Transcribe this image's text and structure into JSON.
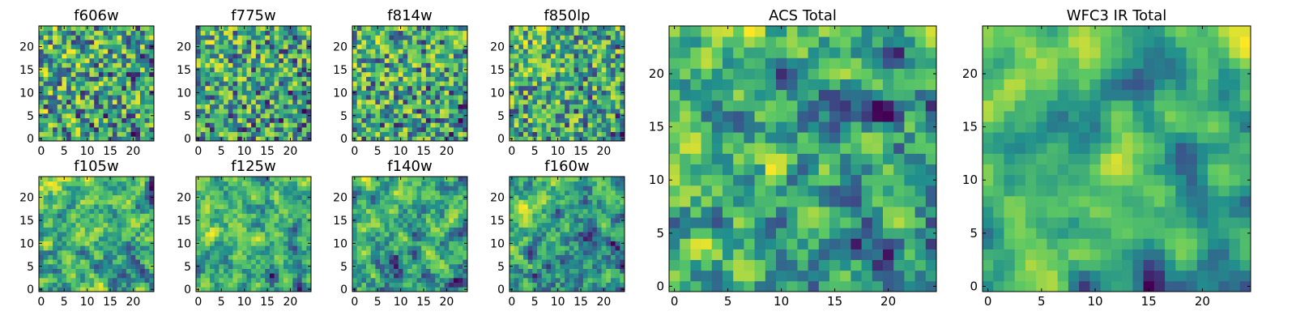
{
  "chart_data": [
    {
      "type": "heatmap",
      "title": "f606w",
      "size": 25,
      "seed": 11,
      "smooth": 0,
      "xticks": [
        0,
        5,
        10,
        15,
        20
      ],
      "yticks": [
        0,
        5,
        10,
        15,
        20
      ]
    },
    {
      "type": "heatmap",
      "title": "f775w",
      "size": 25,
      "seed": 23,
      "smooth": 0,
      "xticks": [
        0,
        5,
        10,
        15,
        20
      ],
      "yticks": [
        0,
        5,
        10,
        15,
        20
      ]
    },
    {
      "type": "heatmap",
      "title": "f814w",
      "size": 25,
      "seed": 37,
      "smooth": 0,
      "xticks": [
        0,
        5,
        10,
        15,
        20
      ],
      "yticks": [
        0,
        5,
        10,
        15,
        20
      ]
    },
    {
      "type": "heatmap",
      "title": "f850lp",
      "size": 25,
      "seed": 41,
      "smooth": 0,
      "xticks": [
        0,
        5,
        10,
        15,
        20
      ],
      "yticks": [
        0,
        5,
        10,
        15,
        20
      ]
    },
    {
      "type": "heatmap",
      "title": "f105w",
      "size": 25,
      "seed": 53,
      "smooth": 1,
      "xticks": [
        0,
        5,
        10,
        15,
        20
      ],
      "yticks": [
        0,
        5,
        10,
        15,
        20
      ]
    },
    {
      "type": "heatmap",
      "title": "f125w",
      "size": 25,
      "seed": 67,
      "smooth": 1,
      "xticks": [
        0,
        5,
        10,
        15,
        20
      ],
      "yticks": [
        0,
        5,
        10,
        15,
        20
      ]
    },
    {
      "type": "heatmap",
      "title": "f140w",
      "size": 25,
      "seed": 79,
      "smooth": 1,
      "xticks": [
        0,
        5,
        10,
        15,
        20
      ],
      "yticks": [
        0,
        5,
        10,
        15,
        20
      ]
    },
    {
      "type": "heatmap",
      "title": "f160w",
      "size": 25,
      "seed": 83,
      "smooth": 1,
      "xticks": [
        0,
        5,
        10,
        15,
        20
      ],
      "yticks": [
        0,
        5,
        10,
        15,
        20
      ]
    },
    {
      "type": "heatmap",
      "title": "ACS Total",
      "size": 25,
      "seed": 97,
      "smooth": 1,
      "xticks": [
        0,
        5,
        10,
        15,
        20
      ],
      "yticks": [
        0,
        5,
        10,
        15,
        20
      ]
    },
    {
      "type": "heatmap",
      "title": "WFC3 IR Total",
      "size": 25,
      "seed": 101,
      "smooth": 2,
      "xticks": [
        0,
        5,
        10,
        15,
        20
      ],
      "yticks": [
        0,
        5,
        10,
        15,
        20
      ]
    }
  ],
  "colormap": [
    "#440154",
    "#3b528b",
    "#21908d",
    "#5dc963",
    "#fde725"
  ]
}
